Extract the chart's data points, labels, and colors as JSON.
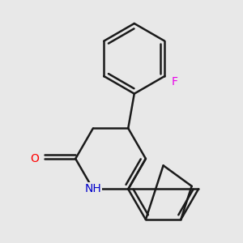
{
  "background_color": "#e8e8e8",
  "bond_color": "#1a1a1a",
  "bond_width": 1.8,
  "atoms": {
    "F": {
      "color": "#e800e8",
      "fontsize": 10
    },
    "O": {
      "color": "#ff0000",
      "fontsize": 10
    },
    "N": {
      "color": "#0000cc",
      "fontsize": 10
    },
    "H_color": "#1a1a1a"
  },
  "figsize": [
    3.0,
    3.0
  ],
  "dpi": 100
}
